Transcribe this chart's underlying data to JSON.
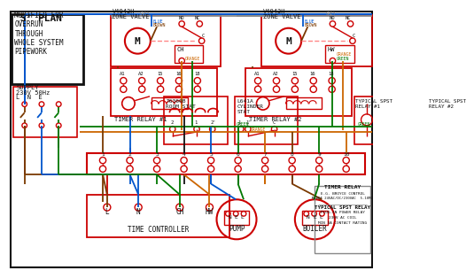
{
  "bg": "#ffffff",
  "red": "#cc0000",
  "blue": "#0055cc",
  "green": "#007700",
  "orange": "#cc6600",
  "brown": "#7a3900",
  "gray": "#888888",
  "black": "#111111",
  "pink_dashed": "#ff8888",
  "title": "'S' PLAN",
  "sub": "MODIFIED FOR\nOVERRUN\nTHROUGH\nWHOLE SYSTEM\nPIPEWORK",
  "supply": "SUPPLY\n230V 50Hz\nL  N  E",
  "zv1_title": "V4043H\nZONE VALVE",
  "zv2_title": "V4043H\nZONE VALVE",
  "tr1": "TIMER RELAY #1",
  "tr2": "TIMER RELAY #2",
  "rs": "T6360B\nROOM STAT",
  "cs": "L641A\nCYLINDER\nSTAT",
  "sp1": "TYPICAL SPST\nRELAY #1",
  "sp2": "TYPICAL SPST\nRELAY #2",
  "tc": "TIME CONTROLLER",
  "pump": "PUMP",
  "boiler": "BOILER",
  "leg1": "TIMER RELAY",
  "leg2": "E.G. BROYCE CONTROL",
  "leg3": "M1EDF 24VAC/DC/230VAC  5-10MI",
  "leg4": "TYPICAL SPST RELAY",
  "leg5": "PLUG-IN POWER RELAY",
  "leg6": "230V AC COIL",
  "leg7": "MIN 3A CONTACT RATING",
  "grey_label": "GREY",
  "grey2_label": "GREY",
  "blue_label": "BLUE",
  "brown_label": "BROWN",
  "green_label": "GREEN",
  "green2_label": "GREEN",
  "orange_label": "ORANGE"
}
